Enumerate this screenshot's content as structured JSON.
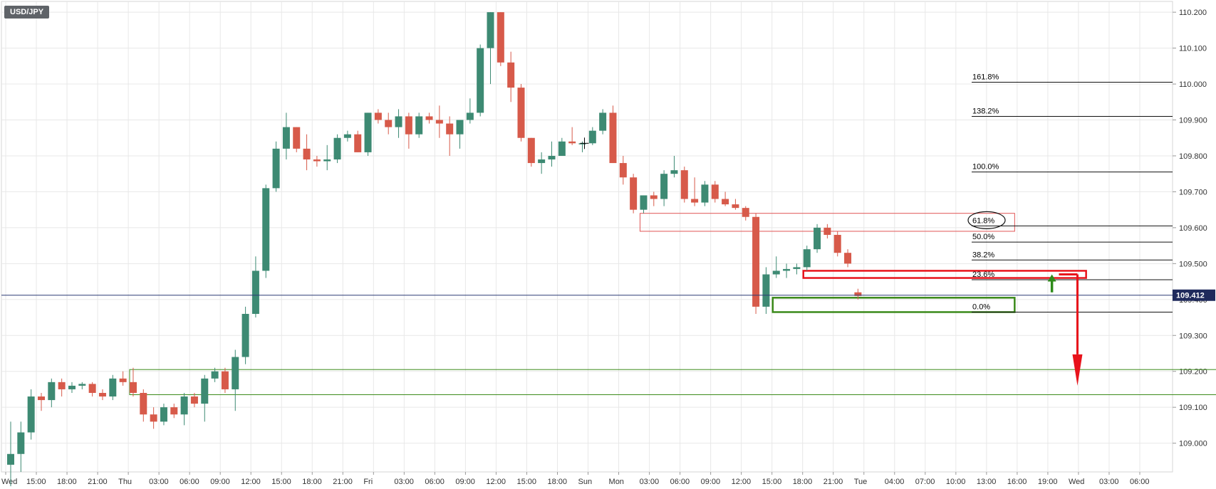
{
  "symbol": "USD/JPY",
  "chart_data": {
    "type": "candlestick",
    "title": "USD/JPY",
    "ylim": [
      108.92,
      110.23
    ],
    "y_ticks": [
      "110.200",
      "110.100",
      "110.000",
      "109.900",
      "109.800",
      "109.700",
      "109.600",
      "109.500",
      "109.400",
      "109.300",
      "109.200",
      "109.100",
      "109.000"
    ],
    "x_ticks": [
      "Wed",
      "15:00",
      "18:00",
      "21:00",
      "Thu",
      "03:00",
      "06:00",
      "09:00",
      "12:00",
      "15:00",
      "18:00",
      "21:00",
      "Fri",
      "03:00",
      "06:00",
      "09:00",
      "12:00",
      "15:00",
      "18:00",
      "Sun",
      "Mon",
      "03:00",
      "06:00",
      "09:00",
      "12:00",
      "15:00",
      "18:00",
      "21:00",
      "Tue",
      "04:00",
      "07:00",
      "10:00",
      "13:00",
      "16:00",
      "19:00",
      "Wed",
      "03:00",
      "06:00"
    ],
    "current_price": "109.412",
    "candles": [
      {
        "o": 108.94,
        "h": 109.06,
        "l": 108.88,
        "c": 108.97
      },
      {
        "o": 108.97,
        "h": 109.06,
        "l": 108.92,
        "c": 109.03
      },
      {
        "o": 109.03,
        "h": 109.15,
        "l": 109.01,
        "c": 109.13
      },
      {
        "o": 109.13,
        "h": 109.14,
        "l": 109.09,
        "c": 109.12
      },
      {
        "o": 109.12,
        "h": 109.18,
        "l": 109.1,
        "c": 109.17
      },
      {
        "o": 109.17,
        "h": 109.18,
        "l": 109.13,
        "c": 109.15
      },
      {
        "o": 109.15,
        "h": 109.17,
        "l": 109.14,
        "c": 109.16
      },
      {
        "o": 109.16,
        "h": 109.17,
        "l": 109.15,
        "c": 109.165
      },
      {
        "o": 109.165,
        "h": 109.17,
        "l": 109.13,
        "c": 109.14
      },
      {
        "o": 109.14,
        "h": 109.15,
        "l": 109.12,
        "c": 109.13
      },
      {
        "o": 109.13,
        "h": 109.19,
        "l": 109.12,
        "c": 109.18
      },
      {
        "o": 109.18,
        "h": 109.2,
        "l": 109.16,
        "c": 109.17
      },
      {
        "o": 109.17,
        "h": 109.21,
        "l": 109.13,
        "c": 109.14
      },
      {
        "o": 109.14,
        "h": 109.15,
        "l": 109.06,
        "c": 109.08
      },
      {
        "o": 109.08,
        "h": 109.1,
        "l": 109.04,
        "c": 109.06
      },
      {
        "o": 109.06,
        "h": 109.11,
        "l": 109.05,
        "c": 109.1
      },
      {
        "o": 109.1,
        "h": 109.11,
        "l": 109.07,
        "c": 109.08
      },
      {
        "o": 109.08,
        "h": 109.14,
        "l": 109.05,
        "c": 109.13
      },
      {
        "o": 109.13,
        "h": 109.14,
        "l": 109.1,
        "c": 109.11
      },
      {
        "o": 109.11,
        "h": 109.19,
        "l": 109.06,
        "c": 109.18
      },
      {
        "o": 109.18,
        "h": 109.21,
        "l": 109.17,
        "c": 109.2
      },
      {
        "o": 109.2,
        "h": 109.21,
        "l": 109.14,
        "c": 109.15
      },
      {
        "o": 109.15,
        "h": 109.26,
        "l": 109.09,
        "c": 109.24
      },
      {
        "o": 109.24,
        "h": 109.38,
        "l": 109.22,
        "c": 109.36
      },
      {
        "o": 109.36,
        "h": 109.52,
        "l": 109.35,
        "c": 109.48
      },
      {
        "o": 109.48,
        "h": 109.72,
        "l": 109.46,
        "c": 109.71
      },
      {
        "o": 109.71,
        "h": 109.84,
        "l": 109.7,
        "c": 109.82
      },
      {
        "o": 109.82,
        "h": 109.92,
        "l": 109.79,
        "c": 109.88
      },
      {
        "o": 109.88,
        "h": 109.88,
        "l": 109.81,
        "c": 109.82
      },
      {
        "o": 109.82,
        "h": 109.86,
        "l": 109.76,
        "c": 109.79
      },
      {
        "o": 109.79,
        "h": 109.8,
        "l": 109.77,
        "c": 109.785
      },
      {
        "o": 109.785,
        "h": 109.83,
        "l": 109.76,
        "c": 109.79
      },
      {
        "o": 109.79,
        "h": 109.86,
        "l": 109.78,
        "c": 109.85
      },
      {
        "o": 109.85,
        "h": 109.87,
        "l": 109.84,
        "c": 109.86
      },
      {
        "o": 109.86,
        "h": 109.87,
        "l": 109.81,
        "c": 109.81
      },
      {
        "o": 109.81,
        "h": 109.92,
        "l": 109.8,
        "c": 109.92
      },
      {
        "o": 109.92,
        "h": 109.93,
        "l": 109.89,
        "c": 109.9
      },
      {
        "o": 109.9,
        "h": 109.92,
        "l": 109.86,
        "c": 109.88
      },
      {
        "o": 109.88,
        "h": 109.93,
        "l": 109.85,
        "c": 109.91
      },
      {
        "o": 109.91,
        "h": 109.92,
        "l": 109.82,
        "c": 109.86
      },
      {
        "o": 109.86,
        "h": 109.92,
        "l": 109.85,
        "c": 109.91
      },
      {
        "o": 109.91,
        "h": 109.92,
        "l": 109.89,
        "c": 109.9
      },
      {
        "o": 109.9,
        "h": 109.94,
        "l": 109.85,
        "c": 109.89
      },
      {
        "o": 109.89,
        "h": 109.91,
        "l": 109.8,
        "c": 109.86
      },
      {
        "o": 109.86,
        "h": 109.9,
        "l": 109.82,
        "c": 109.9
      },
      {
        "o": 109.9,
        "h": 109.96,
        "l": 109.89,
        "c": 109.92
      },
      {
        "o": 109.92,
        "h": 110.11,
        "l": 109.91,
        "c": 110.1
      },
      {
        "o": 110.1,
        "h": 110.2,
        "l": 110.0,
        "c": 110.2
      },
      {
        "o": 110.2,
        "h": 110.2,
        "l": 110.05,
        "c": 110.06
      },
      {
        "o": 110.06,
        "h": 110.09,
        "l": 109.95,
        "c": 109.99
      },
      {
        "o": 109.99,
        "h": 110.0,
        "l": 109.84,
        "c": 109.85
      },
      {
        "o": 109.85,
        "h": 109.85,
        "l": 109.77,
        "c": 109.78
      },
      {
        "o": 109.78,
        "h": 109.81,
        "l": 109.75,
        "c": 109.79
      },
      {
        "o": 109.79,
        "h": 109.84,
        "l": 109.77,
        "c": 109.8
      },
      {
        "o": 109.8,
        "h": 109.85,
        "l": 109.8,
        "c": 109.84
      },
      {
        "o": 109.84,
        "h": 109.88,
        "l": 109.83,
        "c": 109.835
      },
      {
        "o": 109.835,
        "h": 109.84,
        "l": 109.81,
        "c": 109.835
      },
      {
        "o": 109.835,
        "h": 109.88,
        "l": 109.83,
        "c": 109.87
      },
      {
        "o": 109.87,
        "h": 109.93,
        "l": 109.86,
        "c": 109.92
      },
      {
        "o": 109.92,
        "h": 109.94,
        "l": 109.78,
        "c": 109.78
      },
      {
        "o": 109.78,
        "h": 109.8,
        "l": 109.72,
        "c": 109.74
      },
      {
        "o": 109.74,
        "h": 109.75,
        "l": 109.64,
        "c": 109.65
      },
      {
        "o": 109.65,
        "h": 109.69,
        "l": 109.64,
        "c": 109.69
      },
      {
        "o": 109.69,
        "h": 109.7,
        "l": 109.66,
        "c": 109.68
      },
      {
        "o": 109.68,
        "h": 109.76,
        "l": 109.66,
        "c": 109.75
      },
      {
        "o": 109.75,
        "h": 109.8,
        "l": 109.74,
        "c": 109.76
      },
      {
        "o": 109.76,
        "h": 109.77,
        "l": 109.67,
        "c": 109.68
      },
      {
        "o": 109.68,
        "h": 109.74,
        "l": 109.66,
        "c": 109.67
      },
      {
        "o": 109.67,
        "h": 109.73,
        "l": 109.66,
        "c": 109.72
      },
      {
        "o": 109.72,
        "h": 109.73,
        "l": 109.67,
        "c": 109.68
      },
      {
        "o": 109.68,
        "h": 109.7,
        "l": 109.66,
        "c": 109.665
      },
      {
        "o": 109.665,
        "h": 109.68,
        "l": 109.65,
        "c": 109.655
      },
      {
        "o": 109.655,
        "h": 109.66,
        "l": 109.62,
        "c": 109.63
      },
      {
        "o": 109.63,
        "h": 109.64,
        "l": 109.36,
        "c": 109.38
      },
      {
        "o": 109.38,
        "h": 109.49,
        "l": 109.36,
        "c": 109.47
      },
      {
        "o": 109.47,
        "h": 109.52,
        "l": 109.46,
        "c": 109.48
      },
      {
        "o": 109.48,
        "h": 109.5,
        "l": 109.46,
        "c": 109.485
      },
      {
        "o": 109.485,
        "h": 109.5,
        "l": 109.47,
        "c": 109.49
      },
      {
        "o": 109.49,
        "h": 109.55,
        "l": 109.48,
        "c": 109.54
      },
      {
        "o": 109.54,
        "h": 109.61,
        "l": 109.53,
        "c": 109.6
      },
      {
        "o": 109.6,
        "h": 109.61,
        "l": 109.57,
        "c": 109.58
      },
      {
        "o": 109.58,
        "h": 109.59,
        "l": 109.52,
        "c": 109.53
      },
      {
        "o": 109.53,
        "h": 109.54,
        "l": 109.49,
        "c": 109.5
      },
      {
        "o": 109.42,
        "h": 109.43,
        "l": 109.4,
        "c": 109.41
      }
    ],
    "fib_levels": [
      {
        "label": "161.8%",
        "value": 110.005
      },
      {
        "label": "138.2%",
        "value": 109.91
      },
      {
        "label": "100.0%",
        "value": 109.755
      },
      {
        "label": "61.8%",
        "value": 109.605
      },
      {
        "label": "50.0%",
        "value": 109.56
      },
      {
        "label": "38.2%",
        "value": 109.51
      },
      {
        "label": "23.6%",
        "value": 109.455
      },
      {
        "label": "0.0%",
        "value": 109.365
      }
    ],
    "zones": [
      {
        "name": "resistance-zone",
        "color": "#e05555",
        "from_index": 62,
        "to_index": 98,
        "y_top": 109.64,
        "y_bottom": 109.59
      },
      {
        "name": "support-zone",
        "color": "#3b8a1a",
        "from_index": 75,
        "to_index": 98,
        "y_top": 109.405,
        "y_bottom": 109.365
      },
      {
        "name": "resistance-line-zone",
        "color": "#e8131b",
        "from_index": 78,
        "to_index": 105,
        "y_top": 109.48,
        "y_bottom": 109.46
      },
      {
        "name": "demand-zone",
        "color": "#3b8a1a",
        "from_index": 12,
        "to_index": 118,
        "y_top": 109.205,
        "y_bottom": 109.135
      }
    ],
    "arrows": [
      {
        "name": "up-arrow",
        "color": "#2e8b1a",
        "x_index": 102,
        "from": 109.42,
        "to": 109.47
      },
      {
        "name": "down-arrow",
        "color": "#e8131b",
        "x_index": 104.5,
        "from": 109.47,
        "to": 109.16
      }
    ],
    "colors": {
      "bull": "#3d8a73",
      "bear": "#d75a4a",
      "grid": "#e8e8e8",
      "price_line": "#2b3a75"
    }
  }
}
